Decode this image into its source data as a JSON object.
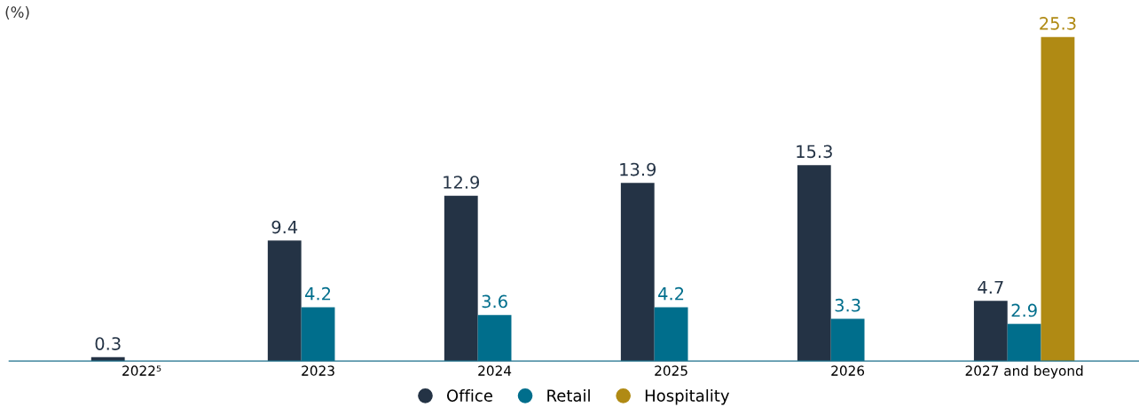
{
  "chart_data": {
    "type": "bar",
    "ylabel": "(%)",
    "categories": [
      "2022⁵",
      "2023",
      "2024",
      "2025",
      "2026",
      "2027 and beyond"
    ],
    "series": [
      {
        "name": "Office",
        "color": "#243345",
        "values": [
          0.3,
          9.4,
          12.9,
          13.9,
          15.3,
          4.7
        ]
      },
      {
        "name": "Retail",
        "color": "#006e8c",
        "values": [
          null,
          4.2,
          3.6,
          4.2,
          3.3,
          2.9
        ]
      },
      {
        "name": "Hospitality",
        "color": "#b08a14",
        "values": [
          null,
          null,
          null,
          null,
          null,
          25.3
        ]
      }
    ],
    "tick_labels": "x",
    "data_labels": true,
    "grid": false,
    "legend": "bottom"
  }
}
